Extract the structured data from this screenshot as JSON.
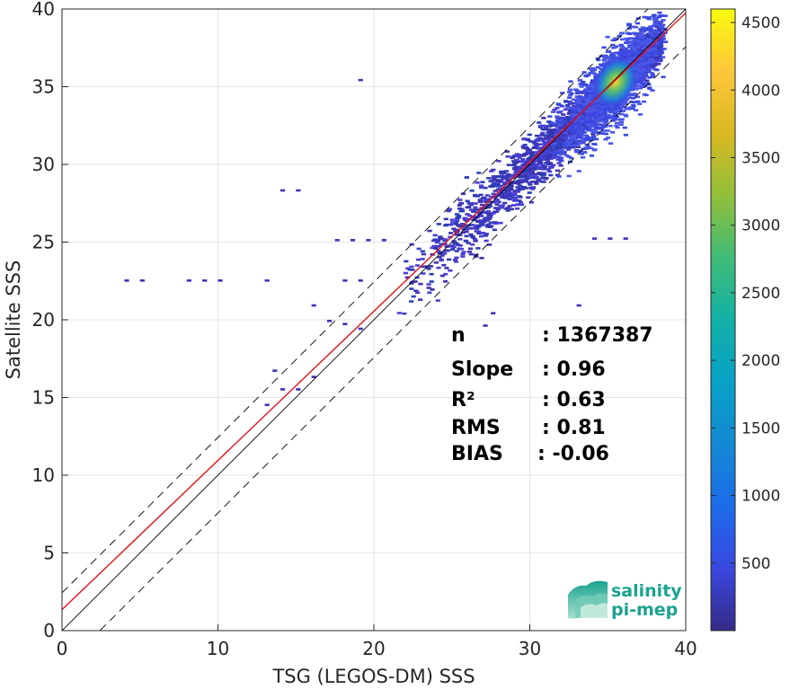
{
  "chart_data": {
    "type": "heatmap",
    "xlabel": "TSG (LEGOS-DM) SSS",
    "ylabel": "Satellite SSS",
    "xlim": [
      0,
      40
    ],
    "ylim": [
      0,
      40
    ],
    "x_ticks": [
      "0",
      "10",
      "20",
      "30",
      "40"
    ],
    "y_ticks": [
      "0",
      "5",
      "10",
      "15",
      "20",
      "25",
      "30",
      "35",
      "40"
    ],
    "grid": true,
    "colorbar": {
      "range": [
        0,
        4600
      ],
      "ticks": [
        "500",
        "1000",
        "1500",
        "2000",
        "2500",
        "3000",
        "3500",
        "4000",
        "4500"
      ],
      "colormap": "parula"
    },
    "density_peak": {
      "x": 35.5,
      "y": 35.3,
      "count": 4500
    },
    "lines": [
      {
        "kind": "1:1",
        "color": "#000000",
        "slope": 1.0,
        "intercept": 0.0
      },
      {
        "kind": "regression",
        "color": "#e8101a",
        "slope": 0.96,
        "intercept": 1.35
      },
      {
        "kind": "upper-bound",
        "color": "#000000",
        "dashed": true,
        "slope": 1.0,
        "intercept": 2.43
      },
      {
        "kind": "lower-bound",
        "color": "#000000",
        "dashed": true,
        "slope": 1.0,
        "intercept": -2.43
      }
    ],
    "stats": [
      {
        "label": "n",
        "value": ": 1367387"
      },
      {
        "label": "Slope",
        "value": ": 0.96"
      },
      {
        "label": "R²",
        "value": ": 0.63"
      },
      {
        "label": "RMS",
        "value": ": 0.81"
      },
      {
        "label": "BIAS",
        "value": ": -0.06"
      }
    ]
  },
  "logo": {
    "line1": "salinity",
    "line2": "pi-mep"
  }
}
